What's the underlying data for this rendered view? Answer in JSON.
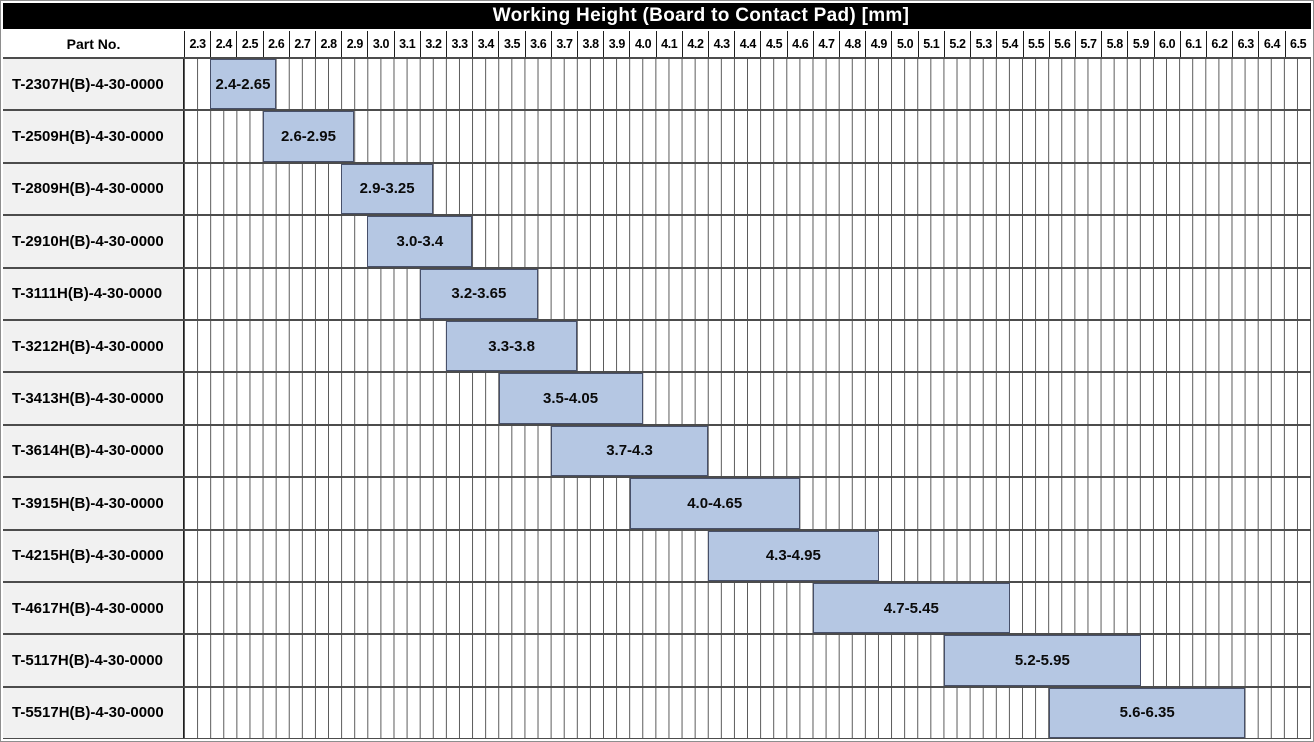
{
  "title": "Working Height (Board to Contact Pad) [mm]",
  "header": {
    "part_no_label": "Part No."
  },
  "axis": {
    "unit": "mm",
    "min": 2.3,
    "max": 6.6,
    "tick_step": 0.1,
    "minor_step": 0.05,
    "ticks": [
      "2.3",
      "2.4",
      "2.5",
      "2.6",
      "2.7",
      "2.8",
      "2.9",
      "3.0",
      "3.1",
      "3.2",
      "3.3",
      "3.4",
      "3.5",
      "3.6",
      "3.7",
      "3.8",
      "3.9",
      "4.0",
      "4.1",
      "4.2",
      "4.3",
      "4.4",
      "4.5",
      "4.6",
      "4.7",
      "4.8",
      "4.9",
      "5.0",
      "5.1",
      "5.2",
      "5.3",
      "5.4",
      "5.5",
      "5.6",
      "5.7",
      "5.8",
      "5.9",
      "6.0",
      "6.1",
      "6.2",
      "6.3",
      "6.4",
      "6.5"
    ]
  },
  "colors": {
    "bar_fill": "#b5c7e3",
    "bar_border": "#47506a",
    "title_bg": "#000000",
    "title_text": "#ffffff",
    "row_label_bg": "#f1f1f1",
    "grid_line": "#575757"
  },
  "chart_data": {
    "type": "bar",
    "subtype": "horizontal-range-gantt",
    "title": "Working Height (Board to Contact Pad) [mm]",
    "xlabel": "",
    "ylabel": "Part No.",
    "xlim": [
      2.3,
      6.6
    ],
    "x_tick_step": 0.1,
    "x_minor_step": 0.05,
    "grid": true,
    "categories": [
      "T-2307H(B)-4-30-0000",
      "T-2509H(B)-4-30-0000",
      "T-2809H(B)-4-30-0000",
      "T-2910H(B)-4-30-0000",
      "T-3111H(B)-4-30-0000",
      "T-3212H(B)-4-30-0000",
      "T-3413H(B)-4-30-0000",
      "T-3614H(B)-4-30-0000",
      "T-3915H(B)-4-30-0000",
      "T-4215H(B)-4-30-0000",
      "T-4617H(B)-4-30-0000",
      "T-5117H(B)-4-30-0000",
      "T-5517H(B)-4-30-0000"
    ],
    "ranges": [
      [
        2.4,
        2.65
      ],
      [
        2.6,
        2.95
      ],
      [
        2.9,
        3.25
      ],
      [
        3.0,
        3.4
      ],
      [
        3.2,
        3.65
      ],
      [
        3.3,
        3.8
      ],
      [
        3.5,
        4.05
      ],
      [
        3.7,
        4.3
      ],
      [
        4.0,
        4.65
      ],
      [
        4.3,
        4.95
      ],
      [
        4.7,
        5.45
      ],
      [
        5.2,
        5.95
      ],
      [
        5.6,
        6.35
      ]
    ],
    "bar_labels": [
      "2.4-2.65",
      "2.6-2.95",
      "2.9-3.25",
      "3.0-3.4",
      "3.2-3.65",
      "3.3-3.8",
      "3.5-4.05",
      "3.7-4.3",
      "4.0-4.65",
      "4.3-4.95",
      "4.7-5.45",
      "5.2-5.95",
      "5.6-6.35"
    ]
  }
}
